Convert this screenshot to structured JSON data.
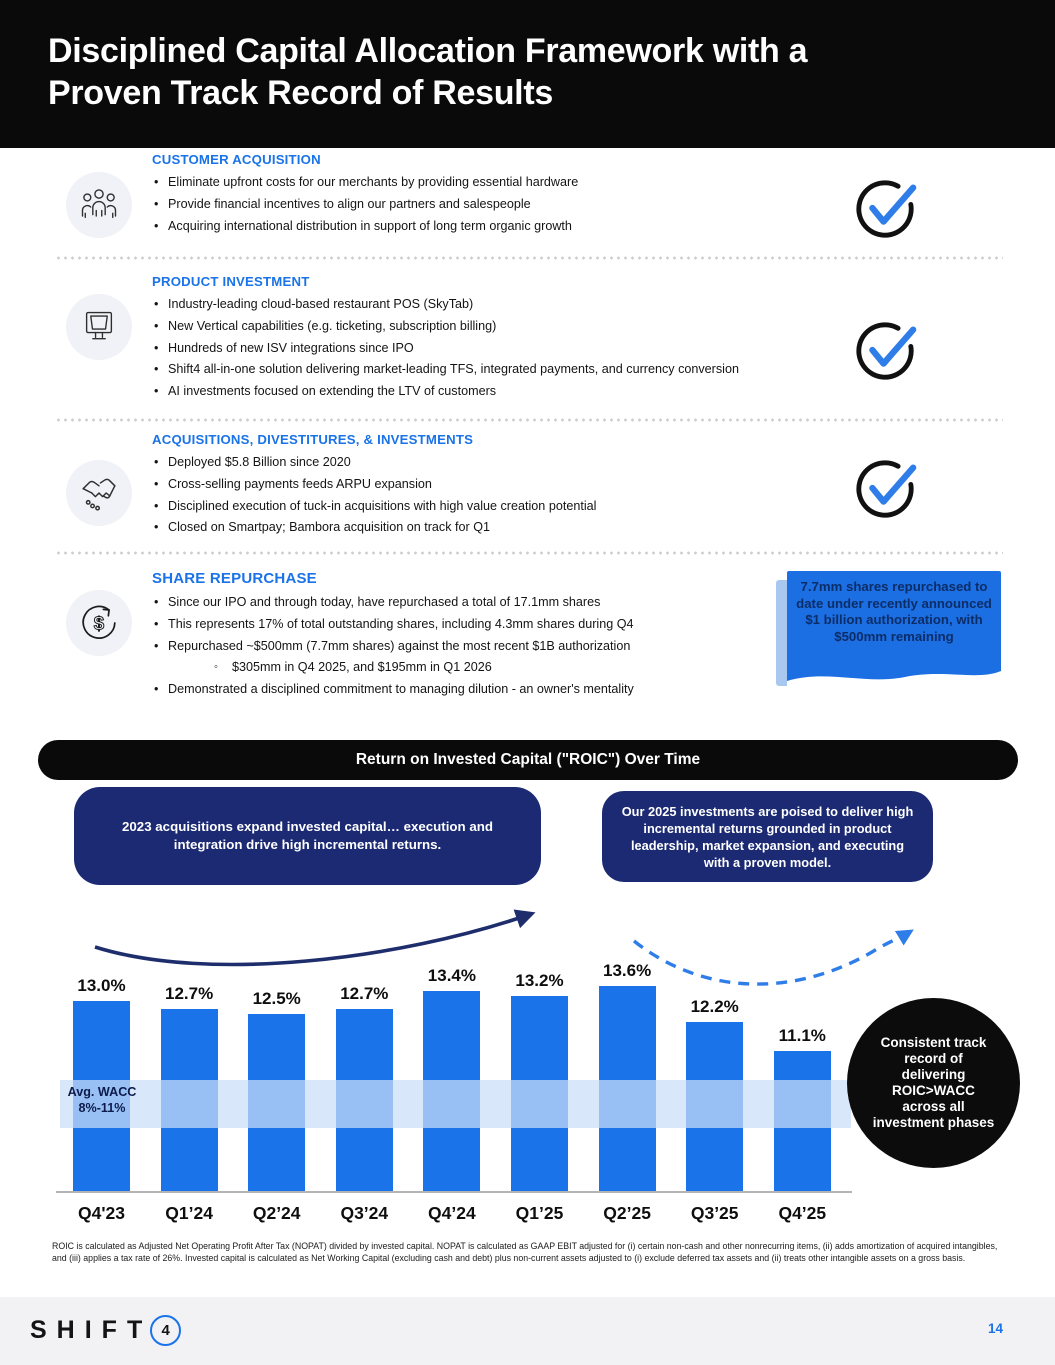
{
  "header": {
    "title_line1": "Disciplined Capital Allocation Framework with a",
    "title_line2": "Proven Track Record of Results"
  },
  "sections": [
    {
      "heading": "CUSTOMER ACQUISITION",
      "icon": "people-icon",
      "checkmark": true,
      "bullets": [
        "Eliminate upfront costs for our merchants by providing essential hardware",
        "Provide financial incentives to align our partners and salespeople",
        "Acquiring international distribution in support of long term organic growth"
      ]
    },
    {
      "heading": "PRODUCT INVESTMENT",
      "icon": "monitor-icon",
      "checkmark": true,
      "bullets": [
        "Industry-leading cloud-based restaurant POS (SkyTab)",
        "New Vertical capabilities (e.g. ticketing, subscription billing)",
        "Hundreds of new ISV integrations since IPO",
        "Shift4 all-in-one solution delivering market-leading TFS, integrated payments, and currency conversion",
        "AI investments focused on extending the LTV of customers"
      ]
    },
    {
      "heading": "ACQUISITIONS, DIVESTITURES, & INVESTMENTS",
      "icon": "handshake-icon",
      "checkmark": true,
      "bullets": [
        "Deployed $5.8 Billion since 2020",
        "Cross-selling payments feeds ARPU expansion",
        "Disciplined execution of tuck-in acquisitions with high value creation potential",
        "Closed on Smartpay; Bambora acquisition on track for Q1"
      ]
    },
    {
      "heading": "SHARE REPURCHASE",
      "icon": "repurchase-icon",
      "checkmark": false,
      "bullets": [
        "Since our IPO and through today, have repurchased a total of 17.1mm shares",
        "This represents 17% of total outstanding shares, including 4.3mm shares during Q4",
        {
          "text": "Repurchased ~$500mm (7.7mm shares) against the most recent $1B authorization",
          "subs": [
            "$305mm in Q4 2025, and $195mm in Q1 2026"
          ]
        },
        "Demonstrated a disciplined commitment to managing dilution - an owner's mentality"
      ]
    }
  ],
  "repurchase_callout": "7.7mm shares repurchased to date under recently announced $1 billion authorization, with $500mm remaining",
  "roic_banner": "Return on Invested Capital (\"ROIC\") Over Time",
  "callout_left": "2023 acquisitions expand invested capital… execution and integration drive high incremental returns.",
  "callout_right": "Our 2025 investments are poised to deliver high incremental returns grounded in product leadership, market expansion, and executing with a proven model.",
  "chart_data": {
    "type": "bar",
    "title": "Return on Invested Capital (\"ROIC\") Over Time",
    "categories": [
      "Q4'23",
      "Q1’24",
      "Q2’24",
      "Q3’24",
      "Q4’24",
      "Q1’25",
      "Q2’25",
      "Q3’25",
      "Q4’25"
    ],
    "values": [
      13.0,
      12.7,
      12.5,
      12.7,
      13.4,
      13.2,
      13.6,
      12.2,
      11.1
    ],
    "unit": "%",
    "ylabel": "",
    "xlabel": "",
    "grid": false,
    "legend": "none",
    "bar_color": "#1a73e8",
    "band_label_line1": "Avg. WACC",
    "band_label_line2": "8%-11%",
    "band_range": [
      8,
      11
    ]
  },
  "circle_callout": "Consistent track record of delivering ROIC>WACC across all investment phases",
  "footnote": "ROIC is calculated as Adjusted Net Operating Profit After Tax (NOPAT) divided by invested capital. NOPAT is calculated as GAAP EBIT adjusted for (i) certain non-cash and other nonrecurring items, (ii) adds amortization of acquired intangibles, and (iii) applies a tax rate of 26%. Invested capital is calculated as Net Working Capital (excluding cash and debt) plus non-current assets adjusted to (i) exclude deferred tax assets and (ii) treats other intangible assets on a gross basis.",
  "footer": {
    "logo_word": "SHIFT",
    "logo_number": "4",
    "page_number": "14"
  },
  "colors": {
    "accent_blue": "#1a73e8",
    "navy": "#1b2a73",
    "callout_blue": "#1c6fe3",
    "black": "#0a0a0a"
  }
}
